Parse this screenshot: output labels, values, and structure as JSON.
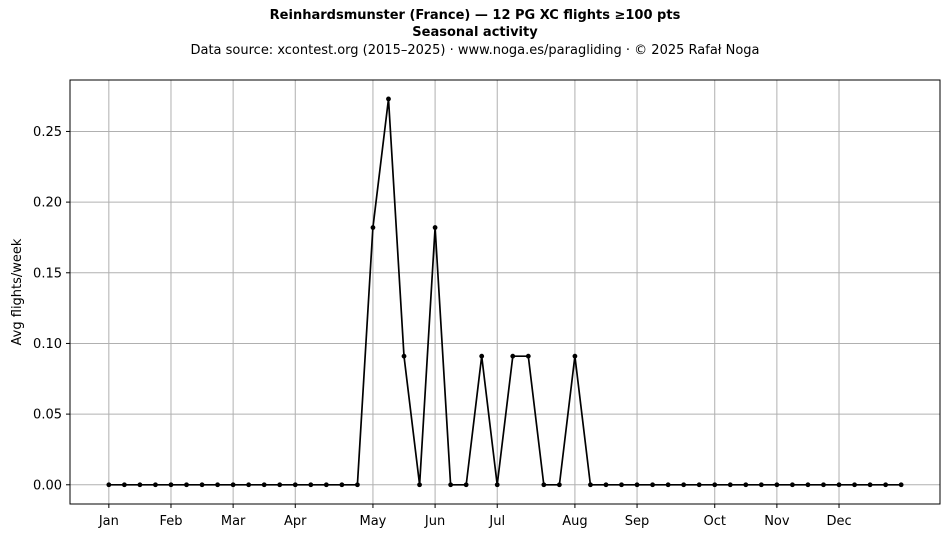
{
  "chart_data": {
    "type": "line",
    "title": "Reinhardsmunster (France)  —  12 PG XC flights ≥100 pts",
    "subtitle": "Seasonal activity",
    "source": "Data source: xcontest.org (2015–2025)  ·  www.noga.es/paragliding  ·  © 2025 Rafał Noga",
    "xlabel": "",
    "ylabel": "Avg flights/week",
    "week_range": [
      -2.5,
      53.5
    ],
    "ylim": [
      -0.0136,
      0.2864
    ],
    "yticks": [
      0.0,
      0.05,
      0.1,
      0.15,
      0.2,
      0.25
    ],
    "ytick_labels": [
      "0.00",
      "0.05",
      "0.10",
      "0.15",
      "0.20",
      "0.25"
    ],
    "xticks": [
      {
        "label": "Jan",
        "week": 0
      },
      {
        "label": "Feb",
        "week": 4
      },
      {
        "label": "Mar",
        "week": 8
      },
      {
        "label": "Apr",
        "week": 12
      },
      {
        "label": "May",
        "week": 17
      },
      {
        "label": "Jun",
        "week": 21
      },
      {
        "label": "Jul",
        "week": 25
      },
      {
        "label": "Aug",
        "week": 30
      },
      {
        "label": "Sep",
        "week": 34
      },
      {
        "label": "Oct",
        "week": 39
      },
      {
        "label": "Nov",
        "week": 43
      },
      {
        "label": "Dec",
        "week": 47
      }
    ],
    "grid": true,
    "legend": "none",
    "line_color": "#000000",
    "grid_color": "#b0b0b0",
    "series": [
      {
        "x": [
          0,
          1,
          2,
          3,
          4,
          5,
          6,
          7,
          8,
          9,
          10,
          11,
          12,
          13,
          14,
          15,
          16,
          17,
          18,
          19,
          20,
          21,
          22,
          23,
          24,
          25,
          26,
          27,
          28,
          29,
          30,
          31,
          32,
          33,
          34,
          35,
          36,
          37,
          38,
          39,
          40,
          41,
          42,
          43,
          44,
          45,
          46,
          47,
          48,
          49,
          50,
          51
        ],
        "values": [
          0,
          0,
          0,
          0,
          0,
          0,
          0,
          0,
          0,
          0,
          0,
          0,
          0,
          0,
          0,
          0,
          0,
          0.182,
          0.273,
          0.091,
          0,
          0.182,
          0,
          0,
          0.091,
          0,
          0.091,
          0.091,
          0,
          0,
          0.091,
          0,
          0,
          0,
          0,
          0,
          0,
          0,
          0,
          0,
          0,
          0,
          0,
          0,
          0,
          0,
          0,
          0,
          0,
          0,
          0,
          0
        ]
      }
    ]
  }
}
